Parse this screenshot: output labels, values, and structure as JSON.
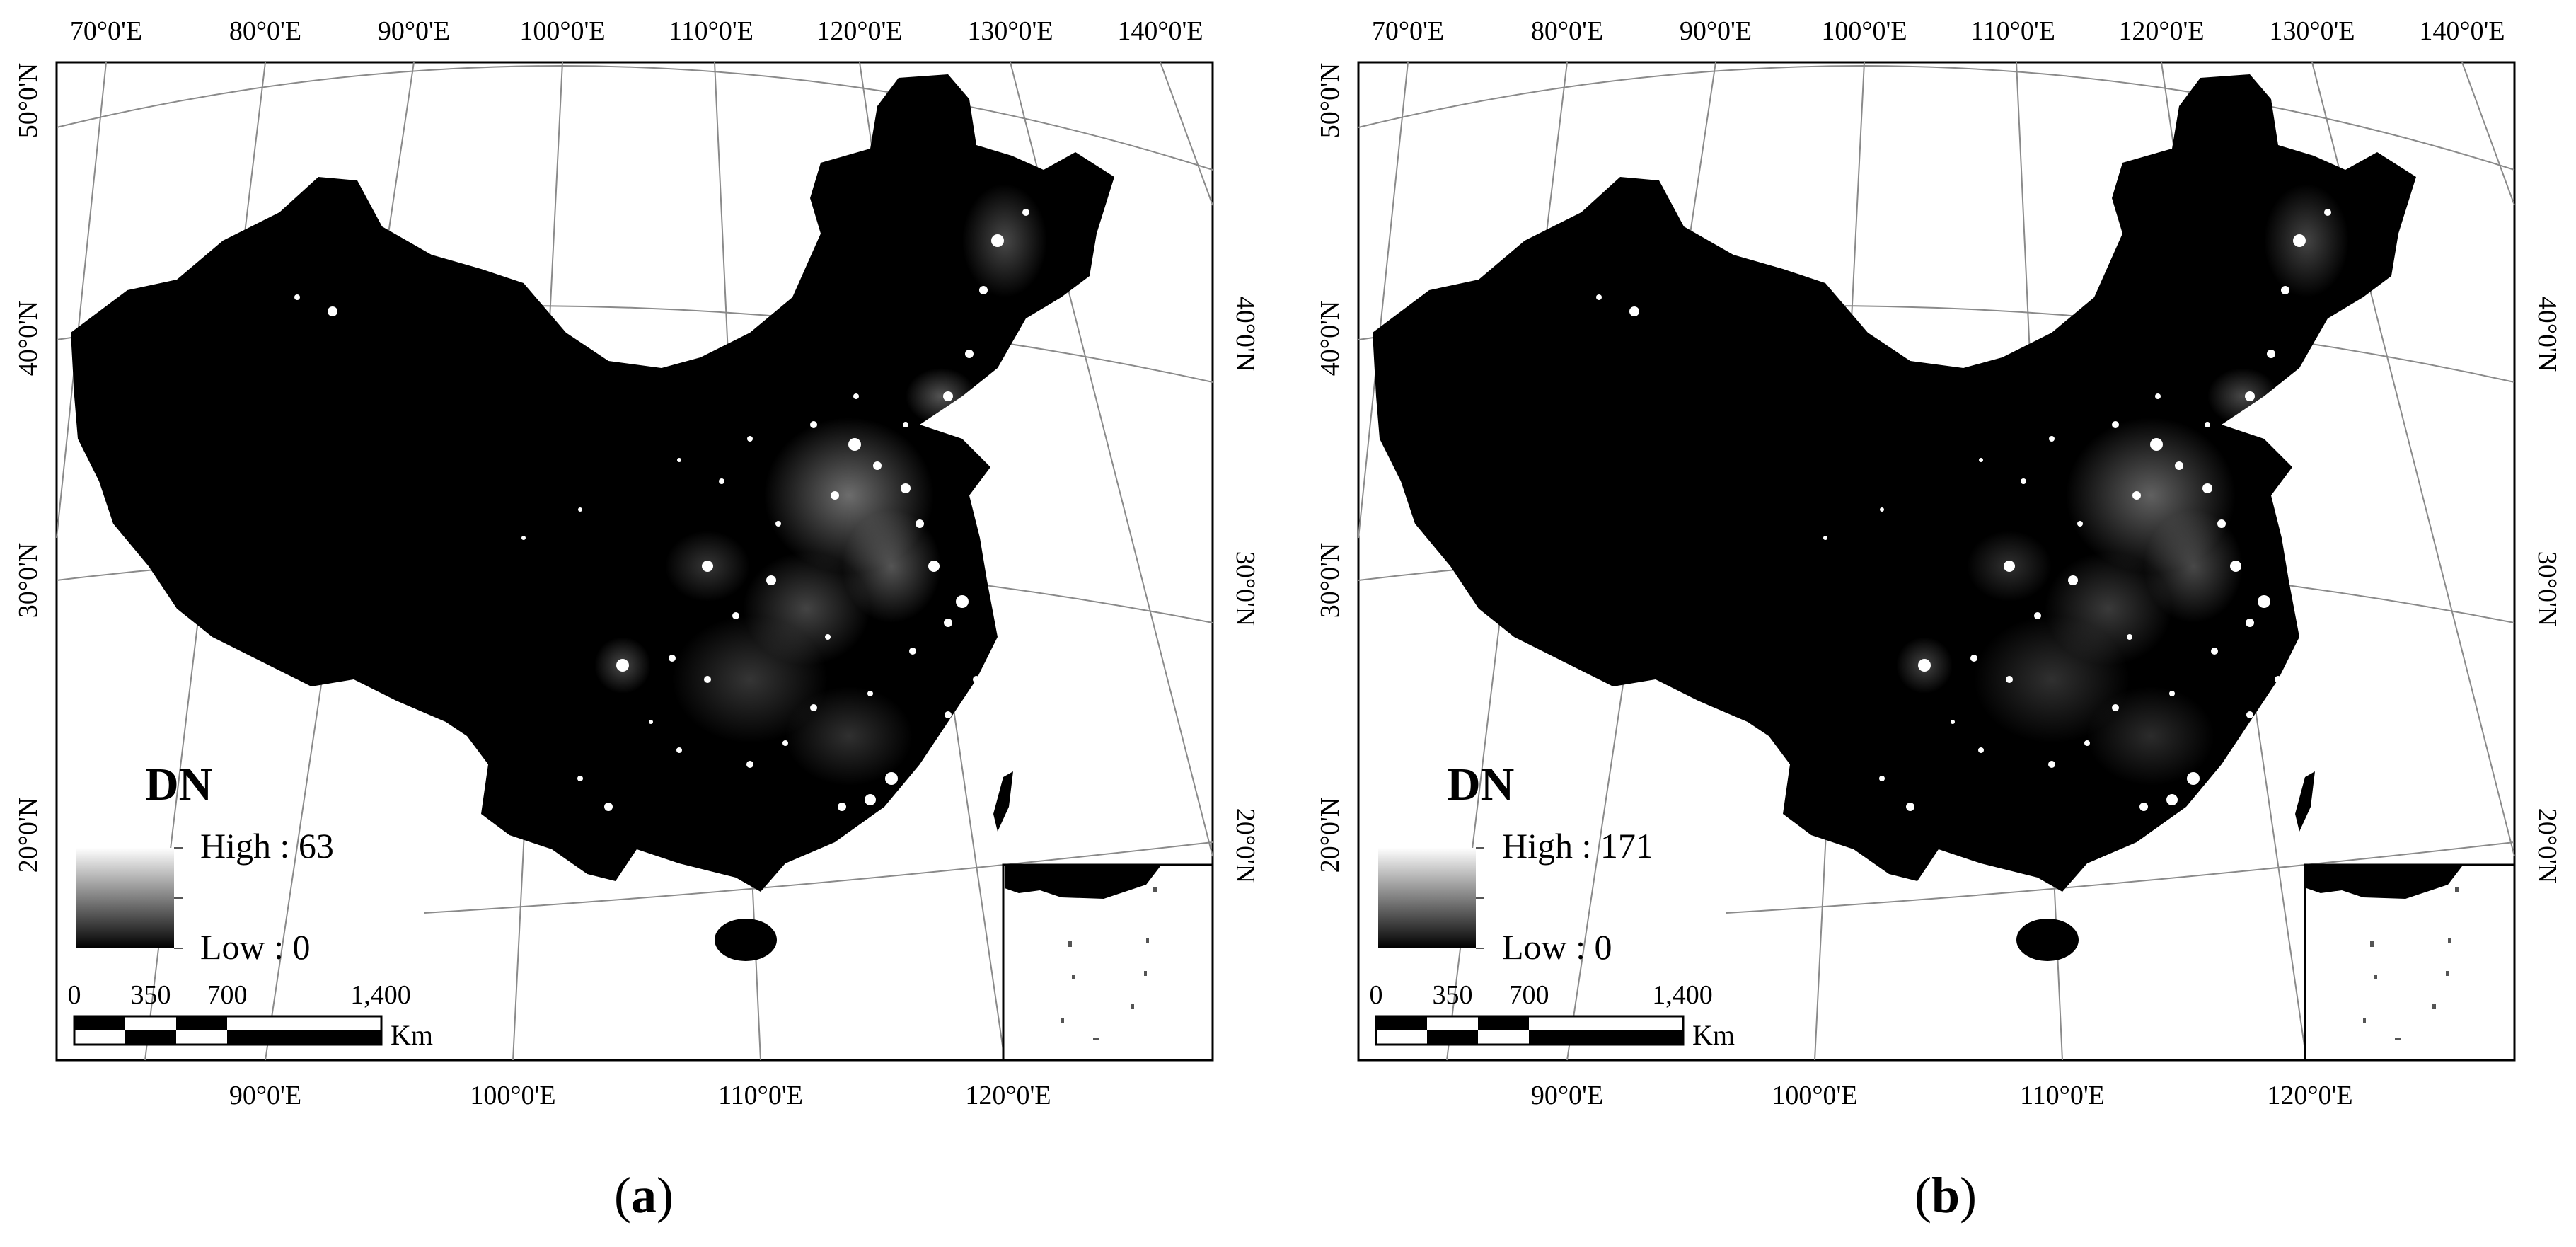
{
  "panels": [
    {
      "caption_letter": "a",
      "legend": {
        "title": "DN",
        "high_label": "High : 63",
        "low_label": "Low : 0"
      },
      "scale_bar": {
        "ticks": [
          "0",
          "350",
          "700",
          "1,400"
        ],
        "unit": "Km"
      }
    },
    {
      "caption_letter": "b",
      "legend": {
        "title": "DN",
        "high_label": "High : 171",
        "low_label": "Low : 0"
      },
      "scale_bar": {
        "ticks": [
          "0",
          "350",
          "700",
          "1,400"
        ],
        "unit": "Km"
      }
    }
  ],
  "graticule": {
    "top_longitudes": [
      "70°0'E",
      "80°0'E",
      "90°0'E",
      "100°0'E",
      "110°0'E",
      "120°0'E",
      "130°0'E",
      "140°0'E"
    ],
    "bottom_longitudes": [
      "90°0'E",
      "100°0'E",
      "110°0'E",
      "120°0'E"
    ],
    "left_latitudes": [
      "50°0'N",
      "40°0'N",
      "30°0'N",
      "20°0'N"
    ],
    "right_latitudes": [
      "40°0'N",
      "30°0'N",
      "20°0'N"
    ]
  },
  "colors": {
    "land": "#000000",
    "background": "#ffffff",
    "lights": "#ffffff",
    "grid": "#8a8a8a"
  }
}
